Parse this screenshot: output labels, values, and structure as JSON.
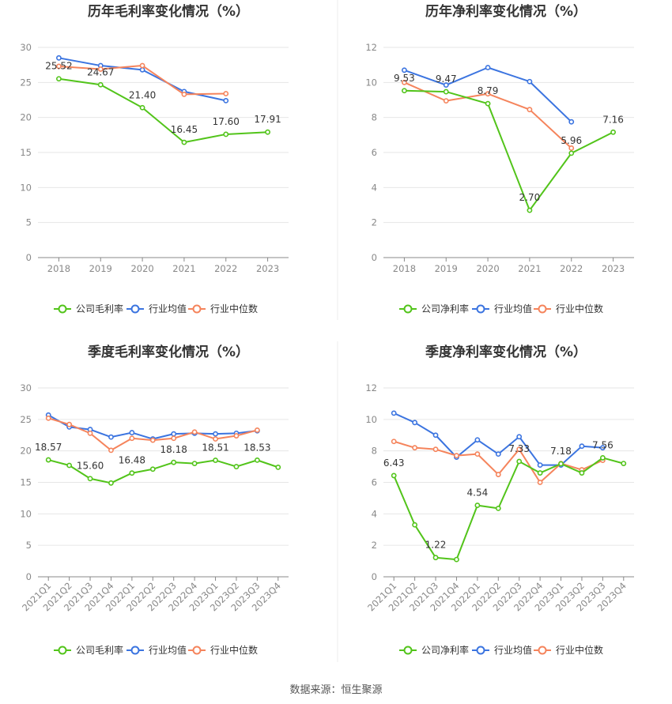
{
  "colors": {
    "company": "#52c41a",
    "industry_avg": "#3b74e0",
    "industry_median": "#f5845c"
  },
  "source_text": "数据来源：恒生聚源",
  "chart_data": [
    {
      "type": "line",
      "title": "历年毛利率变化情况（%）",
      "categories": [
        "2018",
        "2019",
        "2020",
        "2021",
        "2022",
        "2023"
      ],
      "yticks": [
        "0",
        "5",
        "10",
        "15",
        "20",
        "25",
        "30"
      ],
      "ylim": [
        0,
        30
      ],
      "grid": true,
      "legend_position": "bottom",
      "series": [
        {
          "name": "公司毛利率",
          "color": "#52c41a",
          "values": [
            25.52,
            24.67,
            21.4,
            16.45,
            17.6,
            17.91
          ],
          "labels": [
            "25.52",
            "24.67",
            "21.40",
            "16.45",
            "17.60",
            "17.91"
          ]
        },
        {
          "name": "行业均值",
          "color": "#3b74e0",
          "values": [
            28.5,
            27.4,
            26.8,
            23.7,
            22.4,
            null
          ]
        },
        {
          "name": "行业中位数",
          "color": "#f5845c",
          "values": [
            27.3,
            26.9,
            27.4,
            23.3,
            23.4,
            null
          ]
        }
      ]
    },
    {
      "type": "line",
      "title": "历年净利率变化情况（%）",
      "categories": [
        "2018",
        "2019",
        "2020",
        "2021",
        "2022",
        "2023"
      ],
      "yticks": [
        "0",
        "2",
        "4",
        "6",
        "8",
        "10",
        "12"
      ],
      "ylim": [
        0,
        12
      ],
      "grid": true,
      "legend_position": "bottom",
      "series": [
        {
          "name": "公司净利率",
          "color": "#52c41a",
          "values": [
            9.53,
            9.47,
            8.79,
            2.7,
            5.96,
            7.16
          ],
          "labels": [
            "9.53",
            "9.47",
            "8.79",
            "2.70",
            "5.96",
            "7.16"
          ]
        },
        {
          "name": "行业均值",
          "color": "#3b74e0",
          "values": [
            10.7,
            9.85,
            10.85,
            10.05,
            7.75,
            null
          ]
        },
        {
          "name": "行业中位数",
          "color": "#f5845c",
          "values": [
            10.0,
            8.95,
            9.35,
            8.45,
            6.25,
            null
          ]
        }
      ]
    },
    {
      "type": "line",
      "title": "季度毛利率变化情况（%）",
      "categories": [
        "2021Q1",
        "2021Q2",
        "2021Q3",
        "2021Q4",
        "2022Q1",
        "2022Q2",
        "2022Q3",
        "2022Q4",
        "2023Q1",
        "2023Q2",
        "2023Q3",
        "2023Q4"
      ],
      "yticks": [
        "0",
        "5",
        "10",
        "15",
        "20",
        "25",
        "30"
      ],
      "ylim": [
        0,
        30
      ],
      "grid": true,
      "legend_position": "bottom",
      "series": [
        {
          "name": "公司毛利率",
          "color": "#52c41a",
          "values": [
            18.57,
            17.7,
            15.6,
            14.9,
            16.48,
            17.1,
            18.18,
            18.0,
            18.51,
            17.5,
            18.53,
            17.4
          ],
          "labels": [
            "18.57",
            "",
            "15.60",
            "",
            "16.48",
            "",
            "18.18",
            "",
            "18.51",
            "",
            "18.53",
            ""
          ]
        },
        {
          "name": "行业均值",
          "color": "#3b74e0",
          "values": [
            25.7,
            23.8,
            23.4,
            22.2,
            22.9,
            21.9,
            22.7,
            22.8,
            22.7,
            22.8,
            23.2,
            null
          ]
        },
        {
          "name": "行业中位数",
          "color": "#f5845c",
          "values": [
            25.2,
            24.2,
            22.8,
            20.1,
            22.0,
            21.7,
            22.0,
            23.0,
            21.9,
            22.4,
            23.3,
            null
          ]
        }
      ]
    },
    {
      "type": "line",
      "title": "季度净利率变化情况（%）",
      "categories": [
        "2021Q1",
        "2021Q2",
        "2021Q3",
        "2021Q4",
        "2022Q1",
        "2022Q2",
        "2022Q3",
        "2022Q4",
        "2023Q1",
        "2023Q2",
        "2023Q3",
        "2023Q4"
      ],
      "yticks": [
        "0",
        "2",
        "4",
        "6",
        "8",
        "10",
        "12"
      ],
      "ylim": [
        0,
        12
      ],
      "grid": true,
      "legend_position": "bottom",
      "series": [
        {
          "name": "公司净利率",
          "color": "#52c41a",
          "values": [
            6.43,
            3.3,
            1.22,
            1.1,
            4.54,
            4.35,
            7.33,
            6.6,
            7.18,
            6.6,
            7.56,
            7.2
          ],
          "labels": [
            "6.43",
            "",
            "1.22",
            "",
            "4.54",
            "",
            "7.33",
            "",
            "7.18",
            "",
            "7.56",
            ""
          ]
        },
        {
          "name": "行业均值",
          "color": "#3b74e0",
          "values": [
            10.4,
            9.8,
            9.0,
            7.6,
            8.7,
            7.8,
            8.9,
            7.1,
            7.1,
            8.3,
            8.2,
            null
          ]
        },
        {
          "name": "行业中位数",
          "color": "#f5845c",
          "values": [
            8.6,
            8.2,
            8.1,
            7.7,
            7.8,
            6.5,
            8.1,
            6.0,
            7.2,
            6.8,
            7.4,
            null
          ]
        }
      ]
    }
  ]
}
